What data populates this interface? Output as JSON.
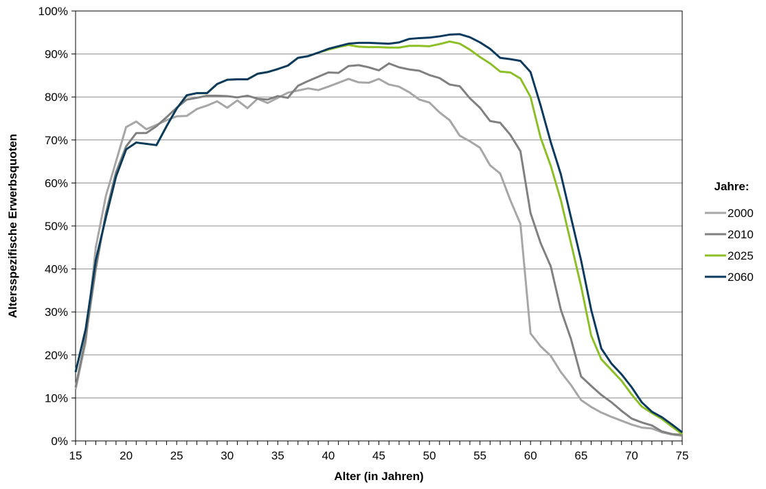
{
  "chart_data": {
    "type": "line",
    "xlabel": "Alter (in Jahren)",
    "ylabel": "Altersspezifische Erwerbsquoten",
    "xlim": [
      15,
      75
    ],
    "ylim": [
      0,
      100
    ],
    "x_ticks": [
      15,
      20,
      25,
      30,
      35,
      40,
      45,
      50,
      55,
      60,
      65,
      70,
      75
    ],
    "y_ticks": [
      0,
      10,
      20,
      30,
      40,
      50,
      60,
      70,
      80,
      90,
      100
    ],
    "y_tick_suffix": "%",
    "grid": "horizontal",
    "legend_title": "Jahre:",
    "legend_position": "right",
    "x": [
      15,
      16,
      17,
      18,
      19,
      20,
      21,
      22,
      23,
      24,
      25,
      26,
      27,
      28,
      29,
      30,
      31,
      32,
      33,
      34,
      35,
      36,
      37,
      38,
      39,
      40,
      41,
      42,
      43,
      44,
      45,
      46,
      47,
      48,
      49,
      50,
      51,
      52,
      53,
      54,
      55,
      56,
      57,
      58,
      59,
      60,
      61,
      62,
      63,
      64,
      65,
      66,
      67,
      68,
      69,
      70,
      71,
      72,
      73,
      74,
      75
    ],
    "series": [
      {
        "name": "2000",
        "color": "#a6a6a6",
        "values": [
          12,
          23,
          45,
          57,
          65,
          73,
          74.3,
          72.5,
          73.5,
          74.6,
          75.5,
          75.6,
          77.2,
          78,
          79,
          77.5,
          79.2,
          77.4,
          79.6,
          78.6,
          79.8,
          81,
          81.5,
          82,
          81.6,
          82.4,
          83.3,
          84.2,
          83.4,
          83.3,
          84.2,
          82.9,
          82.4,
          81.1,
          79.4,
          78.7,
          76.4,
          74.6,
          71,
          69.7,
          68.2,
          64.1,
          62.2,
          56,
          50.5,
          25,
          22,
          19.8,
          16,
          13,
          9.5,
          7.9,
          6.6,
          5.6,
          4.7,
          3.8,
          3.1,
          2.9,
          2,
          1.5,
          1.2
        ]
      },
      {
        "name": "2010",
        "color": "#808080",
        "values": [
          12.5,
          24,
          40,
          53,
          62.5,
          68.5,
          71.6,
          71.6,
          73.2,
          75.3,
          77.5,
          79.4,
          79.8,
          80.3,
          80.3,
          80.2,
          79.9,
          80.3,
          79.6,
          79.4,
          80.2,
          79.8,
          82.6,
          83.7,
          84.7,
          85.7,
          85.6,
          87.2,
          87.4,
          86.9,
          86.2,
          87.8,
          86.9,
          86.4,
          86.1,
          85.1,
          84.4,
          82.9,
          82.5,
          79.7,
          77.5,
          74.4,
          74,
          71.2,
          67.4,
          53,
          46,
          40.6,
          30.5,
          23.7,
          15,
          12.8,
          10.7,
          9,
          7,
          5.2,
          4.3,
          3.6,
          2.2,
          1.6,
          1.4
        ]
      },
      {
        "name": "2025",
        "color": "#8cbf26",
        "values": [
          16,
          26,
          42,
          52,
          61.5,
          67.8,
          69.4,
          69.1,
          68.8,
          73.2,
          77.3,
          80.4,
          80.9,
          80.9,
          83,
          84,
          84.1,
          84.1,
          85.4,
          85.8,
          86.5,
          87.3,
          89.1,
          89.5,
          90.3,
          91,
          91.6,
          92.1,
          91.7,
          91.6,
          91.6,
          91.5,
          91.5,
          91.9,
          91.9,
          91.8,
          92.3,
          92.9,
          92.4,
          91,
          89.3,
          87.8,
          85.9,
          85.7,
          84.3,
          80,
          70.5,
          64,
          56,
          46,
          36,
          24.5,
          19,
          16.5,
          14,
          10.8,
          8,
          6.5,
          5.1,
          3.3,
          1.6
        ]
      },
      {
        "name": "2060",
        "color": "#0b3a5e",
        "values": [
          16,
          26,
          42,
          52,
          61.5,
          67.8,
          69.4,
          69.1,
          68.8,
          73.2,
          77.3,
          80.4,
          80.9,
          80.9,
          83,
          84,
          84.1,
          84.1,
          85.4,
          85.8,
          86.5,
          87.3,
          89.1,
          89.5,
          90.3,
          91.2,
          91.8,
          92.4,
          92.6,
          92.6,
          92.5,
          92.4,
          92.7,
          93.5,
          93.7,
          93.8,
          94.1,
          94.5,
          94.6,
          93.9,
          92.7,
          91.2,
          89.1,
          88.8,
          88.4,
          85.8,
          78,
          69.5,
          62,
          52,
          42,
          30.5,
          21.5,
          18,
          15.5,
          12.5,
          9,
          6.8,
          5.5,
          3.8,
          2
        ]
      }
    ]
  }
}
